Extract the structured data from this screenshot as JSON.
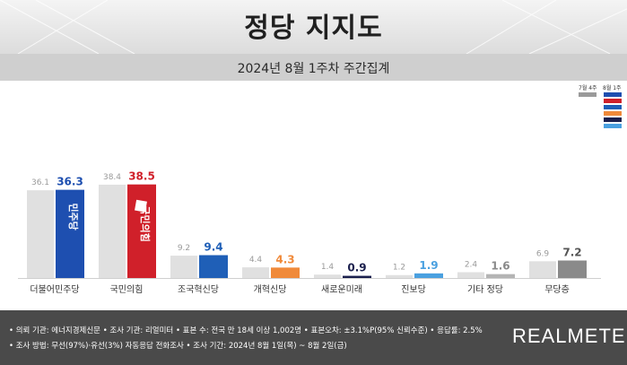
{
  "header": {
    "title": "정당 지지도",
    "subtitle": "2024년 8월 1주차 주간집계"
  },
  "legend": {
    "prev_label": "7월 4주",
    "curr_label": "8월 1주",
    "prev_color": "#9a9a9a",
    "curr_colors": [
      "#1e4fb0",
      "#d0202a",
      "#1f5fb7",
      "#f08a3a",
      "#1a1f4d",
      "#4aa0e0"
    ]
  },
  "chart_data": {
    "type": "bar",
    "categories": [
      "더불어민주당",
      "국민의힘",
      "조국혁신당",
      "개혁신당",
      "새로운미래",
      "진보당",
      "기타 정당",
      "무당층"
    ],
    "series": [
      {
        "name": "7월 4주",
        "values": [
          36.1,
          38.4,
          9.2,
          4.4,
          1.4,
          1.2,
          2.4,
          6.9
        ]
      },
      {
        "name": "8월 1주",
        "values": [
          36.3,
          38.5,
          9.4,
          4.3,
          0.9,
          1.9,
          1.6,
          7.2
        ]
      }
    ],
    "value_labels": {
      "prev": [
        "36.1",
        "38.4",
        "9.2",
        "4.4",
        "1.4",
        "1.2",
        "2.4",
        "6.9"
      ],
      "curr": [
        "36.3",
        "38.5",
        "9.4",
        "4.3",
        "0.9",
        "1.9",
        "1.6",
        "7.2"
      ]
    },
    "prev_color": "#e0e0e0",
    "curr_colors": [
      "#1e4fb0",
      "#d0202a",
      "#1f5fb7",
      "#f08a3a",
      "#1a1f4d",
      "#4aa0e0",
      "#b4b4b4",
      "#8a8a8a"
    ],
    "curr_label_colors": [
      "#1e4fb0",
      "#d0202a",
      "#1f5fb7",
      "#f08a3a",
      "#1a1f4d",
      "#4aa0e0",
      "#8a8a8a",
      "#555555"
    ],
    "bar_logos": [
      "민주당",
      "국민의힘"
    ],
    "ylim": [
      0,
      45
    ]
  },
  "footer": {
    "line1": "• 의뢰 기관: 에너지경제신문  • 조사 기관: 리얼미터 • 표본 수: 전국 만 18세 이상 1,002명  • 표본오차: ±3.1%P(95% 신뢰수준)  • 응답률: 2.5%",
    "line2": "• 조사 방법: 무선(97%)·유선(3%) 자동응답 전화조사  • 조사 기간: 2024년 8월 1일(목) ~ 8월 2일(금)",
    "brand": "REALMETER"
  }
}
